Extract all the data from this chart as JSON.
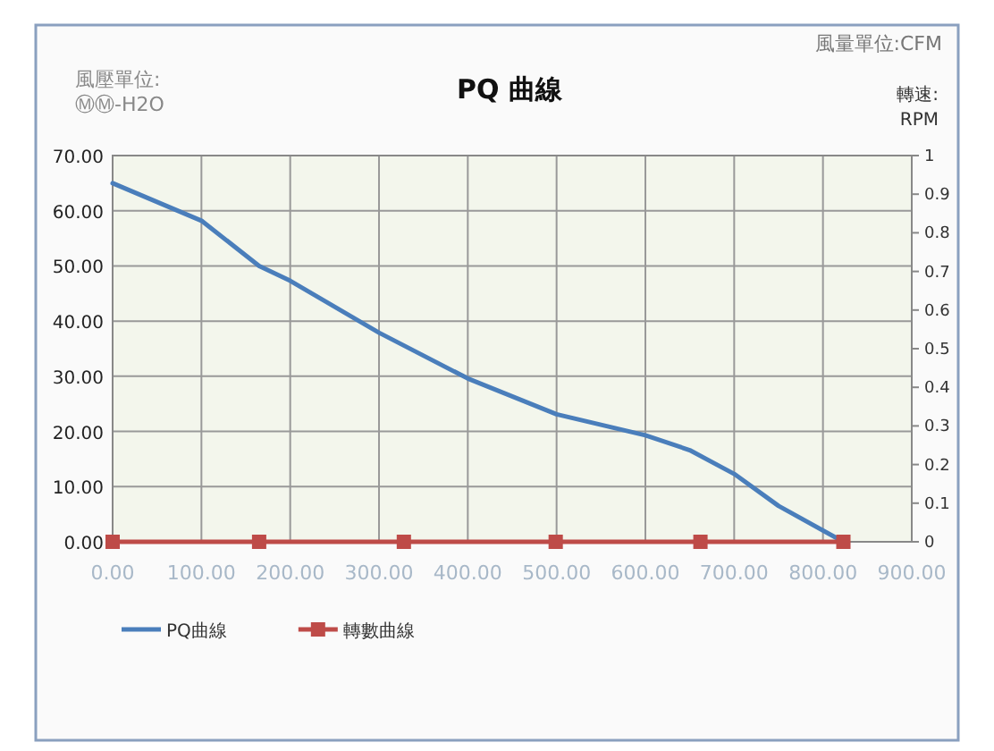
{
  "chart_data": {
    "type": "line",
    "title": "PQ 曲線",
    "xlabel": "風量單位:CFM",
    "ylabel": "風壓單位:\nⓂⓂ-H2O",
    "y2label": "轉速:\nRPM",
    "series": [
      {
        "name": "PQ曲線",
        "color": "#4a7ebb",
        "marker": "none",
        "x": [
          0,
          100,
          165,
          200,
          300,
          400,
          500,
          600,
          650,
          700,
          750,
          823
        ],
        "values": [
          65,
          58.2,
          50,
          47.3,
          37.9,
          29.6,
          23.1,
          19.3,
          16.6,
          12.3,
          6.5,
          0
        ]
      },
      {
        "name": "轉數曲線",
        "color": "#be4b48",
        "marker": "square",
        "x": [
          0,
          165,
          328,
          499,
          662,
          823
        ],
        "values": [
          0,
          0,
          0,
          0,
          0,
          0
        ]
      }
    ],
    "xlim": [
      0,
      900
    ],
    "xticks": [
      {
        "value": 0,
        "label": "0.00"
      },
      {
        "value": 100,
        "label": "100.00"
      },
      {
        "value": 200,
        "label": "200.00"
      },
      {
        "value": 300,
        "label": "300.00"
      },
      {
        "value": 400,
        "label": "400.00"
      },
      {
        "value": 500,
        "label": "500.00"
      },
      {
        "value": 600,
        "label": "600.00"
      },
      {
        "value": 700,
        "label": "700.00"
      },
      {
        "value": 800,
        "label": "800.00"
      },
      {
        "value": 900,
        "label": "900.00"
      }
    ],
    "ylim": [
      0,
      70
    ],
    "yticks": [
      {
        "value": 0,
        "label": "0.00"
      },
      {
        "value": 10,
        "label": "10.00"
      },
      {
        "value": 20,
        "label": "20.00"
      },
      {
        "value": 30,
        "label": "30.00"
      },
      {
        "value": 40,
        "label": "40.00"
      },
      {
        "value": 50,
        "label": "50.00"
      },
      {
        "value": 60,
        "label": "60.00"
      },
      {
        "value": 70,
        "label": "70.00"
      }
    ],
    "y2lim": [
      0,
      1
    ],
    "y2ticks": [
      0,
      0.1,
      0.2,
      0.3,
      0.4,
      0.5,
      0.6,
      0.7,
      0.8,
      0.9,
      1
    ],
    "grid": true,
    "legend": "bottom"
  }
}
